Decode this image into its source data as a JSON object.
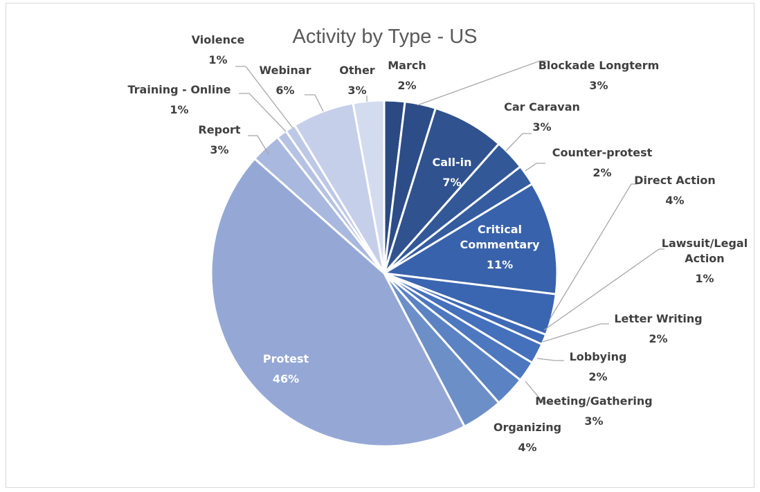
{
  "chart_data": {
    "type": "pie",
    "title": "Activity by Type - US",
    "start_angle_deg": 0,
    "direction": "clockwise",
    "slices": [
      {
        "name": "March",
        "value": 2,
        "pct_label": "2%",
        "color": "#2b4a82"
      },
      {
        "name": "Blockade Longterm",
        "value": 3,
        "pct_label": "3%",
        "color": "#2d4d88"
      },
      {
        "name": "Call-in",
        "value": 7,
        "pct_label": "7%",
        "color": "#30528f"
      },
      {
        "name": "Car Caravan",
        "value": 3,
        "pct_label": "3%",
        "color": "#325898"
      },
      {
        "name": "Counter-protest",
        "value": 2,
        "pct_label": "2%",
        "color": "#345c9f"
      },
      {
        "name": "Critical Commentary",
        "value": 11,
        "pct_label": "11%",
        "color": "#3862ab"
      },
      {
        "name": "Direct Action",
        "value": 4,
        "pct_label": "4%",
        "color": "#3a65b1"
      },
      {
        "name": "Lawsuit/Legal Action",
        "value": 1,
        "pct_label": "1%",
        "color": "#3d69b6"
      },
      {
        "name": "Letter Writing",
        "value": 2,
        "pct_label": "2%",
        "color": "#4470bc"
      },
      {
        "name": "Lobbying",
        "value": 2,
        "pct_label": "2%",
        "color": "#4d78c0"
      },
      {
        "name": "Meeting/Gathering",
        "value": 3,
        "pct_label": "3%",
        "color": "#5b82c3"
      },
      {
        "name": "Organizing",
        "value": 4,
        "pct_label": "4%",
        "color": "#6d8fc8"
      },
      {
        "name": "Protest",
        "value": 46,
        "pct_label": "46%",
        "color": "#95a8d5"
      },
      {
        "name": "Report",
        "value": 3,
        "pct_label": "3%",
        "color": "#a8b8de"
      },
      {
        "name": "Training - Online",
        "value": 1,
        "pct_label": "1%",
        "color": "#b5c2e3"
      },
      {
        "name": "Violence",
        "value": 1,
        "pct_label": "1%",
        "color": "#bcc8e6"
      },
      {
        "name": "Webinar",
        "value": 6,
        "pct_label": "6%",
        "color": "#c5cfea"
      },
      {
        "name": "Other",
        "value": 3,
        "pct_label": "3%",
        "color": "#d3dbef"
      }
    ],
    "legend": "none"
  }
}
